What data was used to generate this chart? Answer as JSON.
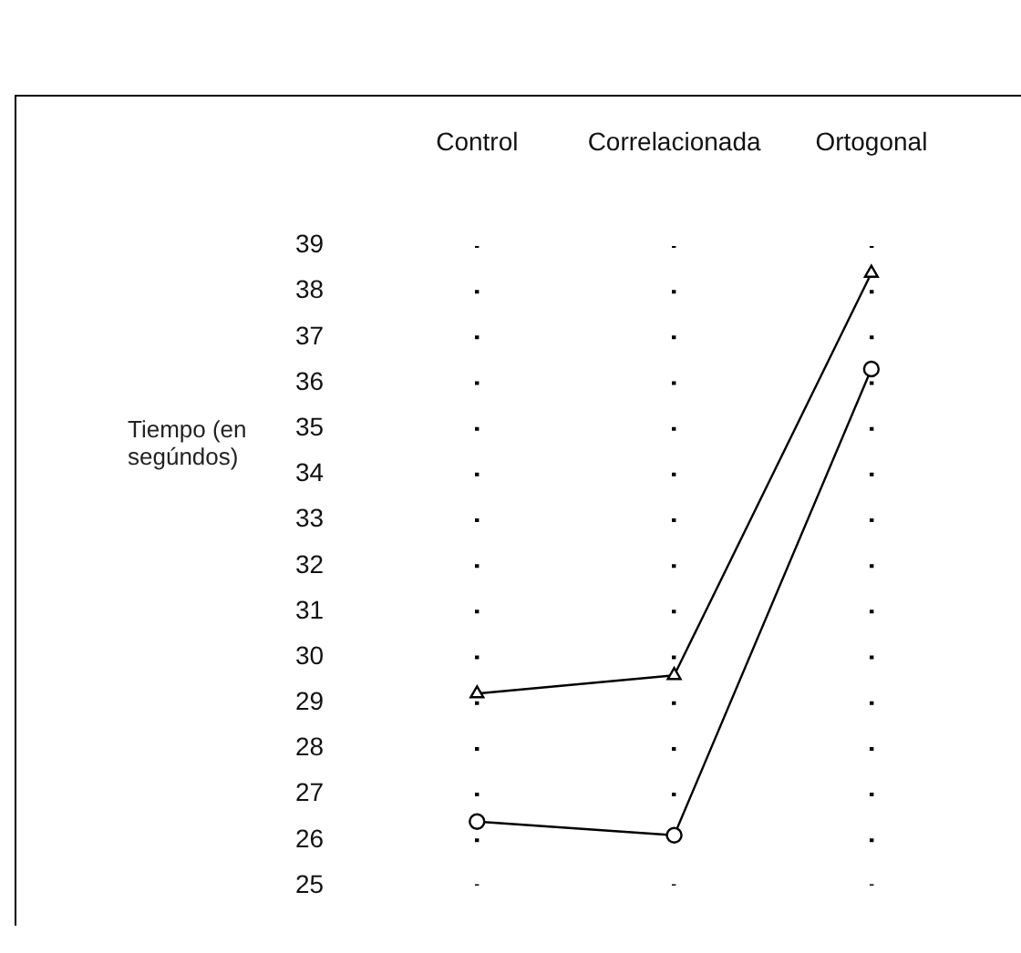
{
  "chart_data": {
    "type": "line",
    "ylabel": "Tiempo (en segúndos)",
    "categories": [
      "Control",
      "Correlacionada",
      "Ortogonal"
    ],
    "series": [
      {
        "color": "#000000",
        "marker": "triangle",
        "values": [
          29.2,
          29.6,
          38.4
        ]
      },
      {
        "color": "#000000",
        "marker": "circle",
        "values": [
          26.4,
          26.1,
          36.3
        ]
      }
    ],
    "ylim": [
      25,
      39
    ],
    "yticks": [
      25,
      26,
      27,
      28,
      29,
      30,
      31,
      32,
      33,
      34,
      35,
      36,
      37,
      38,
      39
    ],
    "grid": "x",
    "legend": false,
    "line_style": "solid"
  }
}
